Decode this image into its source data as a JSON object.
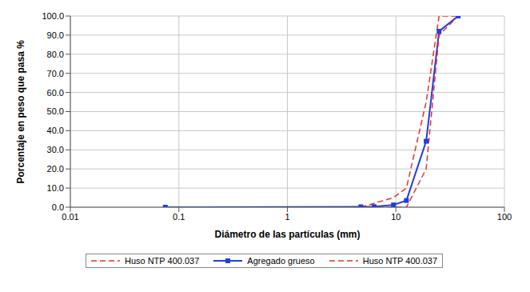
{
  "chart_data": {
    "type": "line",
    "x_label": "Diámetro de las partículas (mm)",
    "y_label": "Porcentaje en peso que pasa %",
    "log": "x",
    "grid": true,
    "legend": "bottom",
    "xlim": [
      0.01,
      100
    ],
    "xticks": [
      0.01,
      0.1,
      1,
      10,
      100
    ],
    "ylim": [
      0,
      100
    ],
    "yticks": [
      {
        "value": 0,
        "label": "0.0"
      },
      {
        "value": 10,
        "label": "10.0"
      },
      {
        "value": 20,
        "label": "20.0"
      },
      {
        "value": 30,
        "label": "30.0"
      },
      {
        "value": 40,
        "label": "40.0"
      },
      {
        "value": 50,
        "label": "50.0"
      },
      {
        "value": 60,
        "label": "60.0"
      },
      {
        "value": 70,
        "label": "70.0"
      },
      {
        "value": 80,
        "label": "80.0"
      },
      {
        "value": 90,
        "label": "90.0"
      },
      {
        "value": 100,
        "label": "100.0"
      }
    ],
    "series": [
      {
        "name": "Huso NTP 400.037",
        "color": "#e8302a",
        "line_style": "dashed",
        "marker": "none",
        "x": [
          4.75,
          9.5,
          12.5,
          19,
          25,
          37.5
        ],
        "values": [
          0,
          5,
          10,
          55,
          100,
          100
        ]
      },
      {
        "name": "Agregado grueso",
        "color": "#1f3de0",
        "line_style": "solid",
        "marker": "square",
        "x": [
          0.075,
          4.75,
          6.3,
          9.5,
          12.5,
          19,
          25,
          37.5
        ],
        "values": [
          0.0,
          0.2,
          0.3,
          1.2,
          3.5,
          34.5,
          92.0,
          100
        ]
      },
      {
        "name": "Huso NTP 400.037",
        "color": "#e8302a",
        "line_style": "dashed",
        "marker": "none",
        "x": [
          4.75,
          9.5,
          12.5,
          19,
          25,
          37.5
        ],
        "values": [
          0,
          0,
          0,
          20,
          90,
          100
        ]
      }
    ]
  }
}
